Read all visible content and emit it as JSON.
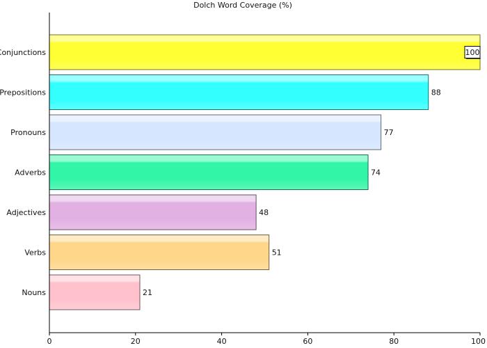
{
  "chart_data": {
    "type": "bar",
    "orientation": "horizontal",
    "title": "Dolch Word Coverage (%)",
    "xlabel": "",
    "ylabel": "",
    "xlim": [
      0,
      100
    ],
    "x_ticks": [
      0,
      20,
      40,
      60,
      80,
      100
    ],
    "grid": false,
    "legend": "none",
    "categories": [
      "Conjunctions",
      "Prepositions",
      "Pronouns",
      "Adverbs",
      "Adjectives",
      "Verbs",
      "Nouns"
    ],
    "values": [
      100,
      88,
      77,
      74,
      48,
      51,
      21
    ],
    "colors": [
      "#ffff33",
      "#33ffff",
      "#d6e6ff",
      "#33f5a8",
      "#e2b0e2",
      "#ffd68a",
      "#ffc2cc"
    ],
    "highlighted_category": "Conjunctions"
  }
}
